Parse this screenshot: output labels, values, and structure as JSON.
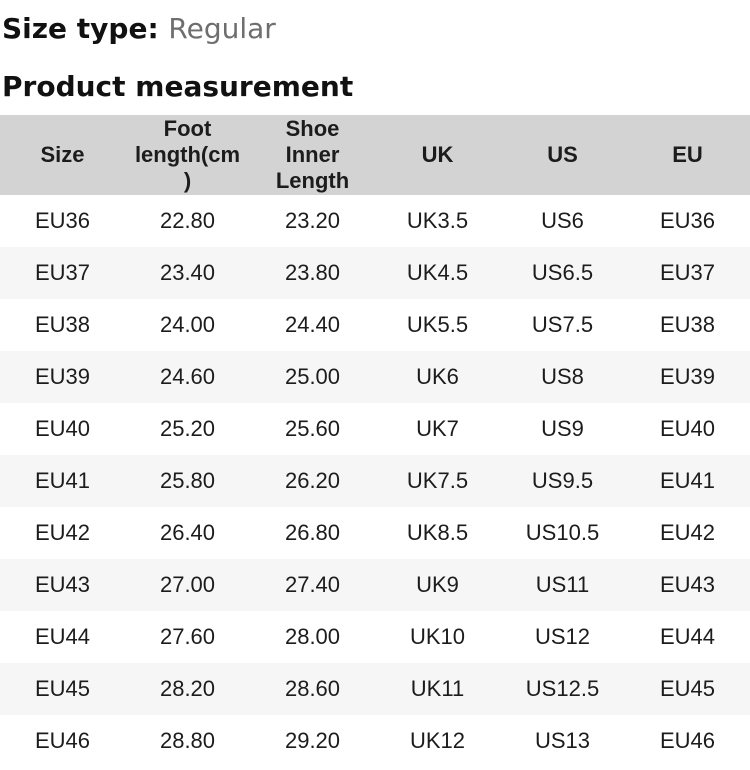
{
  "size_type": {
    "label": "Size type:",
    "value": "Regular"
  },
  "section": {
    "title": "Product measurement"
  },
  "table": {
    "headers": [
      "Size",
      "Foot length(cm)",
      "Shoe Inner Length",
      "UK",
      "US",
      "EU"
    ],
    "rows": [
      [
        "EU36",
        "22.80",
        "23.20",
        "UK3.5",
        "US6",
        "EU36"
      ],
      [
        "EU37",
        "23.40",
        "23.80",
        "UK4.5",
        "US6.5",
        "EU37"
      ],
      [
        "EU38",
        "24.00",
        "24.40",
        "UK5.5",
        "US7.5",
        "EU38"
      ],
      [
        "EU39",
        "24.60",
        "25.00",
        "UK6",
        "US8",
        "EU39"
      ],
      [
        "EU40",
        "25.20",
        "25.60",
        "UK7",
        "US9",
        "EU40"
      ],
      [
        "EU41",
        "25.80",
        "26.20",
        "UK7.5",
        "US9.5",
        "EU41"
      ],
      [
        "EU42",
        "26.40",
        "26.80",
        "UK8.5",
        "US10.5",
        "EU42"
      ],
      [
        "EU43",
        "27.00",
        "27.40",
        "UK9",
        "US11",
        "EU43"
      ],
      [
        "EU44",
        "27.60",
        "28.00",
        "UK10",
        "US12",
        "EU44"
      ],
      [
        "EU45",
        "28.20",
        "28.60",
        "UK11",
        "US12.5",
        "EU45"
      ],
      [
        "EU46",
        "28.80",
        "29.20",
        "UK12",
        "US13",
        "EU46"
      ]
    ]
  },
  "colors": {
    "header_bg": "#d3d3d3",
    "stripe_bg": "#f6f6f6",
    "heading_text": "#111111",
    "table_text": "#1c1c1c",
    "muted_text": "#6e6e6e"
  }
}
